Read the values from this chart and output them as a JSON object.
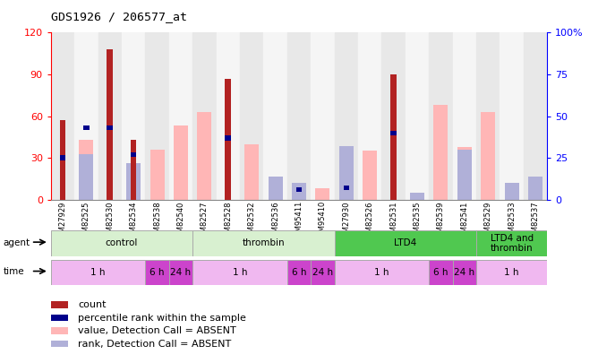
{
  "title": "GDS1926 / 206577_at",
  "samples": [
    "GSM27929",
    "GSM82525",
    "GSM82530",
    "GSM82534",
    "GSM82538",
    "GSM82540",
    "GSM82527",
    "GSM82528",
    "GSM82532",
    "GSM82536",
    "GSM95411",
    "GSM95410",
    "GSM27930",
    "GSM82526",
    "GSM82531",
    "GSM82535",
    "GSM82539",
    "GSM82541",
    "GSM82529",
    "GSM82533",
    "GSM82537"
  ],
  "count": [
    57,
    0,
    108,
    43,
    0,
    0,
    0,
    87,
    0,
    0,
    0,
    0,
    0,
    0,
    90,
    0,
    0,
    0,
    0,
    0,
    0
  ],
  "percentile": [
    25,
    43,
    43,
    27,
    0,
    0,
    0,
    37,
    0,
    0,
    6,
    0,
    7,
    0,
    40,
    0,
    0,
    0,
    0,
    0,
    0
  ],
  "value_absent": [
    0,
    43,
    0,
    0,
    36,
    53,
    63,
    0,
    40,
    0,
    0,
    8,
    0,
    35,
    0,
    0,
    68,
    38,
    63,
    0,
    0
  ],
  "rank_absent": [
    0,
    27,
    0,
    22,
    0,
    0,
    0,
    0,
    0,
    14,
    10,
    0,
    32,
    0,
    0,
    4,
    0,
    30,
    0,
    10,
    14
  ],
  "ylim_left": [
    0,
    120
  ],
  "ylim_right": [
    0,
    100
  ],
  "yticks_left": [
    0,
    30,
    60,
    90,
    120
  ],
  "yticks_right": [
    0,
    25,
    50,
    75,
    100
  ],
  "color_count": "#b22222",
  "color_percentile": "#00008b",
  "color_value_absent": "#ffb6b6",
  "color_rank_absent": "#b0b0d8",
  "agent_groups": [
    {
      "label": "control",
      "start": 0,
      "end": 6,
      "color": "#d8f0d0",
      "border": "#aaaaaa"
    },
    {
      "label": "thrombin",
      "start": 6,
      "end": 12,
      "color": "#d8f0d0",
      "border": "#aaaaaa"
    },
    {
      "label": "LTD4",
      "start": 12,
      "end": 18,
      "color": "#50c850",
      "border": "#aaaaaa"
    },
    {
      "label": "LTD4 and\nthrombin",
      "start": 18,
      "end": 21,
      "color": "#50c850",
      "border": "#aaaaaa"
    }
  ],
  "time_groups": [
    {
      "label": "1 h",
      "start": 0,
      "end": 4,
      "color": "#f0b8f0"
    },
    {
      "label": "6 h",
      "start": 4,
      "end": 5,
      "color": "#cc44cc"
    },
    {
      "label": "24 h",
      "start": 5,
      "end": 6,
      "color": "#cc44cc"
    },
    {
      "label": "1 h",
      "start": 6,
      "end": 10,
      "color": "#f0b8f0"
    },
    {
      "label": "6 h",
      "start": 10,
      "end": 11,
      "color": "#cc44cc"
    },
    {
      "label": "24 h",
      "start": 11,
      "end": 12,
      "color": "#cc44cc"
    },
    {
      "label": "1 h",
      "start": 12,
      "end": 16,
      "color": "#f0b8f0"
    },
    {
      "label": "6 h",
      "start": 16,
      "end": 17,
      "color": "#cc44cc"
    },
    {
      "label": "24 h",
      "start": 17,
      "end": 18,
      "color": "#cc44cc"
    },
    {
      "label": "1 h",
      "start": 18,
      "end": 21,
      "color": "#f0b8f0"
    }
  ],
  "legend_items": [
    {
      "color": "#b22222",
      "label": "count"
    },
    {
      "color": "#00008b",
      "label": "percentile rank within the sample"
    },
    {
      "color": "#ffb6b6",
      "label": "value, Detection Call = ABSENT"
    },
    {
      "color": "#b0b0d8",
      "label": "rank, Detection Call = ABSENT"
    }
  ]
}
